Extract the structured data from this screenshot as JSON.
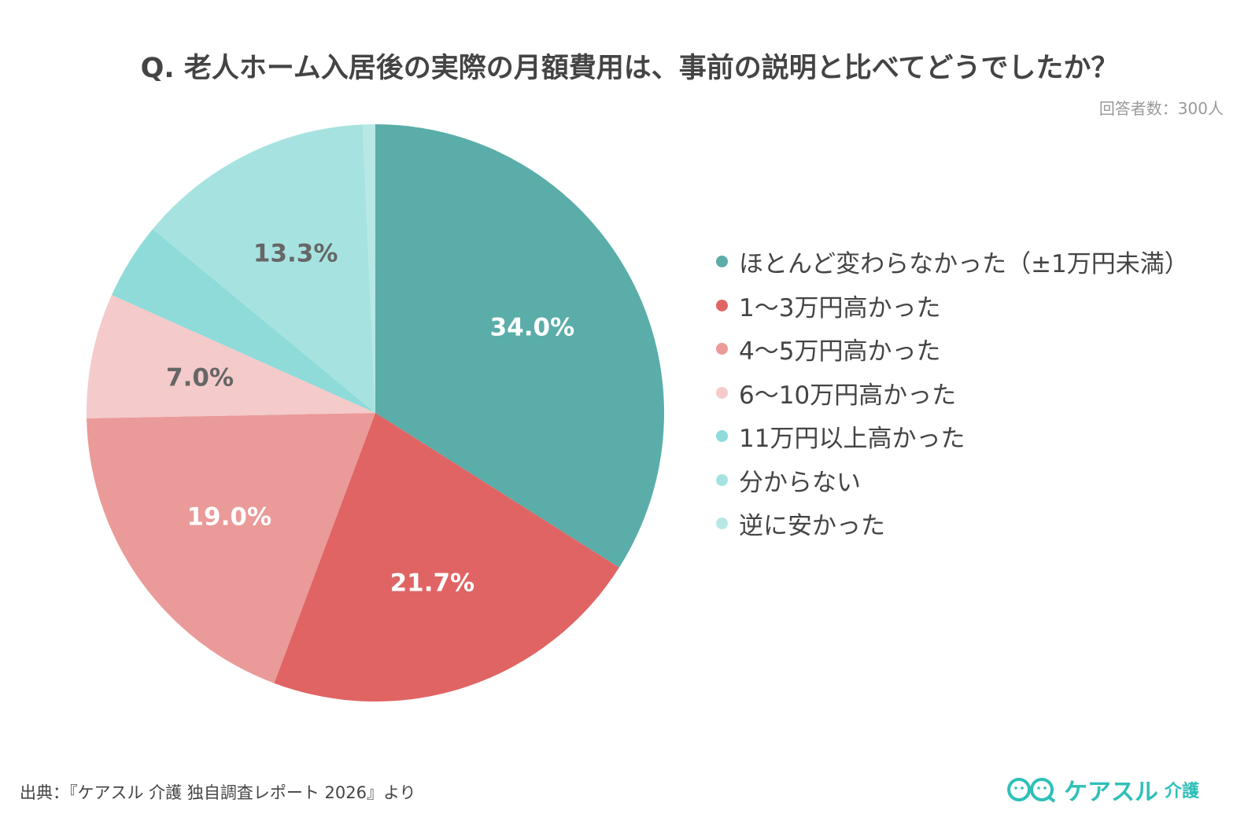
{
  "chart_data": {
    "type": "pie",
    "title": "Q. 老人ホーム入居後の実際の月額費用は、事前の説明と比べてどうでしたか？",
    "subtitle": "回答者数：300人",
    "start": "top, clockwise",
    "legend_position": "right",
    "slices": [
      {
        "label": "ほとんど変わらなかった（±1万円未満）",
        "value": 34.0,
        "data_label": "34.0%",
        "color": "#5AADA8",
        "label_color": "#ffffff"
      },
      {
        "label": "1〜3万円高かった",
        "value": 21.7,
        "data_label": "21.7%",
        "color": "#E06464",
        "label_color": "#ffffff"
      },
      {
        "label": "4〜5万円高かった",
        "value": 19.0,
        "data_label": "19.0%",
        "color": "#EA9A99",
        "label_color": "#ffffff"
      },
      {
        "label": "6〜10万円高かった",
        "value": 7.0,
        "data_label": "7.0%",
        "color": "#F4CACA",
        "label_color": "#666666"
      },
      {
        "label": "11万円以上高かった",
        "value": 4.3,
        "data_label": "",
        "color": "#8EDBD9",
        "label_color": "#666666"
      },
      {
        "label": "分からない",
        "value": 13.3,
        "data_label": "13.3%",
        "color": "#A6E3E0",
        "label_color": "#666666"
      },
      {
        "label": "逆に安かった",
        "value": 0.7,
        "data_label": "",
        "color": "#B8E8E6",
        "label_color": "#666666"
      }
    ]
  },
  "footer": {
    "source": "出典：『ケアスル 介護 独自調査レポート 2026』より",
    "logo": "ケアスル 介護",
    "logo_main": "ケアスル",
    "logo_sub": "介護"
  }
}
